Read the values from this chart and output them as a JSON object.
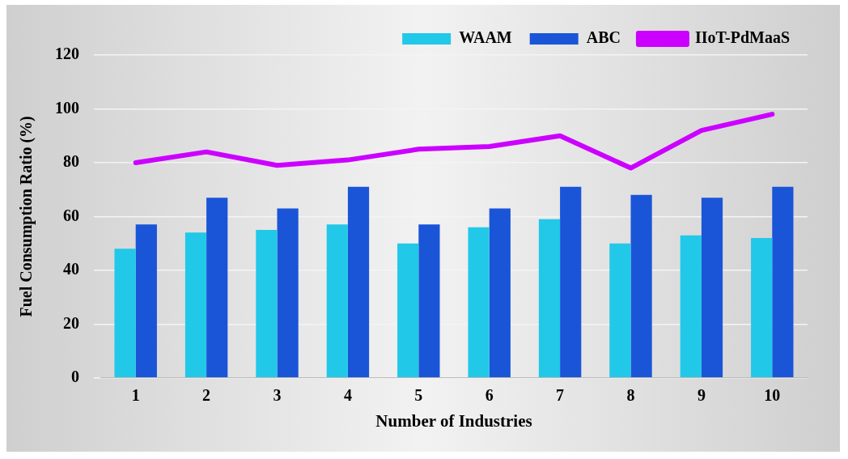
{
  "chart_data": {
    "type": "bar",
    "xlabel": "Number of Industries",
    "ylabel": "Fuel Consumption Ratio (%)",
    "categories": [
      "1",
      "2",
      "3",
      "4",
      "5",
      "6",
      "7",
      "8",
      "9",
      "10"
    ],
    "series": [
      {
        "name": "WAAM",
        "color": "#22c8e8",
        "values": [
          48,
          54,
          55,
          57,
          50,
          56,
          59,
          50,
          53,
          52
        ]
      },
      {
        "name": "ABC",
        "color": "#1a55d8",
        "values": [
          57,
          67,
          63,
          71,
          57,
          63,
          71,
          68,
          67,
          71
        ]
      },
      {
        "name": "IIoT-PdMaaS",
        "type": "line",
        "color": "#cc00ff",
        "values": [
          80,
          84,
          79,
          81,
          85,
          86,
          90,
          78,
          92,
          98
        ]
      }
    ],
    "ylim": [
      0,
      120
    ],
    "yticks": [
      0,
      20,
      40,
      60,
      80,
      100,
      120
    ],
    "grid": "y",
    "legend": "top right",
    "marker": "none"
  }
}
